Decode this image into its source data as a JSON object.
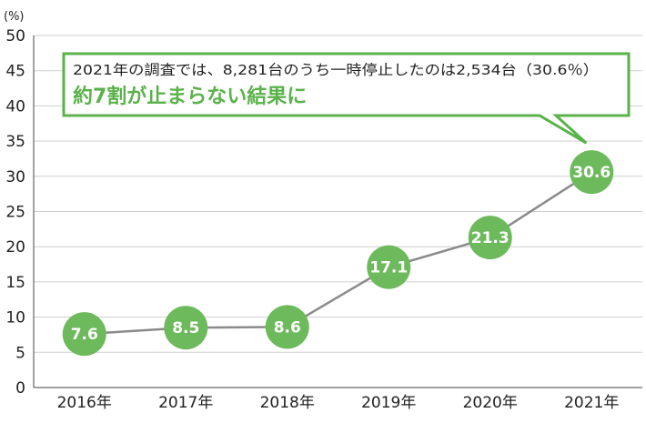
{
  "chart_data": {
    "type": "line",
    "title": "",
    "xlabel": "",
    "ylabel": "(%)",
    "ylim": [
      0,
      50
    ],
    "yticks": [
      0,
      5,
      10,
      15,
      20,
      25,
      30,
      35,
      40,
      45,
      50
    ],
    "grid": true,
    "categories": [
      "2016年",
      "2017年",
      "2018年",
      "2019年",
      "2020年",
      "2021年"
    ],
    "series": [
      {
        "values": [
          7.6,
          8.5,
          8.6,
          17.1,
          21.3,
          30.6
        ],
        "labels": [
          "7.6",
          "8.5",
          "8.6",
          "17.1",
          "21.3",
          "30.6"
        ]
      }
    ],
    "annotation": {
      "line1": "2021年の調査では、8,281台のうち一時停止したのは2,534台（30.6％）",
      "line2": "約7割が止まらない結果に",
      "points_to": "2021年"
    },
    "colors": {
      "marker": "#6dba5c",
      "line": "#8a8a8a",
      "grid": "#cfcfcf",
      "callout_border": "#5ab24a",
      "emphasis": "#5ab24a"
    }
  }
}
